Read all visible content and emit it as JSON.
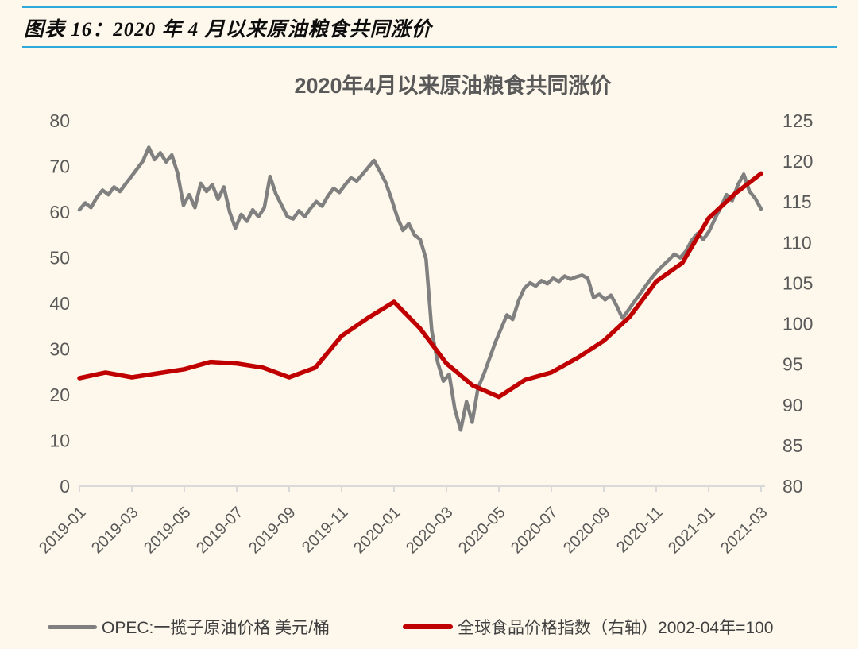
{
  "header": {
    "caption": "图表 16：2020 年 4 月以来原油粮食共同涨价"
  },
  "chart": {
    "title": "2020年4月以来原油粮食共同涨价"
  },
  "legend": {
    "series1": "OPEC:一揽子原油价格 美元/桶",
    "series2": "全球食品价格指数（右轴）2002-04年=100"
  },
  "colors": {
    "background": "#FDF8EB",
    "rule_blue": "#2EA9DC",
    "oil_line": "#808080",
    "food_line": "#C00000",
    "axis_line": "#D9D9D9",
    "axis_text": "#595959",
    "legend_text": "#3F3F3F",
    "title_text": "#595959"
  },
  "chart_data": {
    "type": "line",
    "title": "2020年4月以来原油粮食共同涨价",
    "x_tick_labels": [
      "2019-01",
      "2019-03",
      "2019-05",
      "2019-07",
      "2019-09",
      "2019-11",
      "2020-01",
      "2020-03",
      "2020-05",
      "2020-07",
      "2020-09",
      "2020-11",
      "2021-01",
      "2021-03"
    ],
    "x_range_months": [
      "2019-01",
      "2021-03"
    ],
    "left_axis": {
      "label": "美元/桶",
      "min": 0,
      "max": 80,
      "step": 10,
      "ticks": [
        0,
        10,
        20,
        30,
        40,
        50,
        60,
        70,
        80
      ]
    },
    "right_axis": {
      "label": "指数 2002-04年=100",
      "min": 80,
      "max": 125,
      "step": 5,
      "ticks": [
        80,
        85,
        90,
        95,
        100,
        105,
        110,
        115,
        120,
        125
      ]
    },
    "grid": false,
    "legend_position": "bottom",
    "series": [
      {
        "name": "OPEC:一揽子原油价格 美元/桶",
        "axis": "left",
        "color": "#808080",
        "sampling": "evenly spaced from 2019-01 to 2021-03 (approx weekly)",
        "values": [
          60.5,
          62.0,
          61.0,
          63.2,
          64.8,
          63.8,
          65.5,
          64.5,
          66.2,
          67.8,
          69.5,
          71.2,
          74.2,
          71.5,
          73.0,
          71.0,
          72.5,
          68.5,
          61.5,
          63.8,
          61.0,
          66.3,
          64.5,
          66.0,
          62.8,
          65.5,
          60.0,
          56.5,
          59.5,
          58.0,
          60.5,
          59.0,
          61.0,
          67.8,
          64.0,
          61.5,
          59.0,
          58.5,
          60.3,
          59.0,
          60.8,
          62.3,
          61.3,
          63.5,
          65.2,
          64.3,
          66.0,
          67.5,
          66.8,
          68.3,
          69.8,
          71.3,
          69.0,
          66.5,
          63.0,
          59.0,
          56.0,
          57.5,
          55.0,
          54.0,
          49.7,
          34.0,
          27.2,
          23.0,
          24.5,
          16.8,
          12.3,
          18.5,
          14.0,
          21.5,
          24.5,
          28.0,
          31.5,
          34.5,
          37.5,
          36.5,
          40.5,
          43.3,
          44.5,
          43.8,
          45.0,
          44.3,
          45.5,
          44.8,
          46.0,
          45.3,
          45.8,
          46.2,
          45.5,
          41.3,
          42.0,
          40.8,
          41.8,
          39.5,
          36.8,
          38.5,
          40.3,
          42.0,
          43.8,
          45.5,
          47.0,
          48.3,
          49.5,
          50.8,
          50.0,
          51.5,
          53.8,
          55.3,
          54.0,
          55.8,
          58.5,
          61.0,
          63.8,
          62.5,
          66.0,
          68.3,
          64.5,
          63.0,
          60.7
        ]
      },
      {
        "name": "全球食品价格指数（右轴）2002-04年=100",
        "axis": "right",
        "color": "#C00000",
        "sampling": "monthly 2019-01 .. 2021-03",
        "values": [
          93.3,
          94.0,
          93.4,
          93.9,
          94.4,
          95.3,
          95.1,
          94.6,
          93.4,
          94.6,
          98.5,
          100.7,
          102.7,
          99.4,
          95.1,
          92.4,
          91.0,
          93.1,
          94.0,
          95.8,
          97.9,
          100.9,
          105.2,
          107.5,
          113.0,
          116.0,
          118.5
        ]
      }
    ]
  }
}
